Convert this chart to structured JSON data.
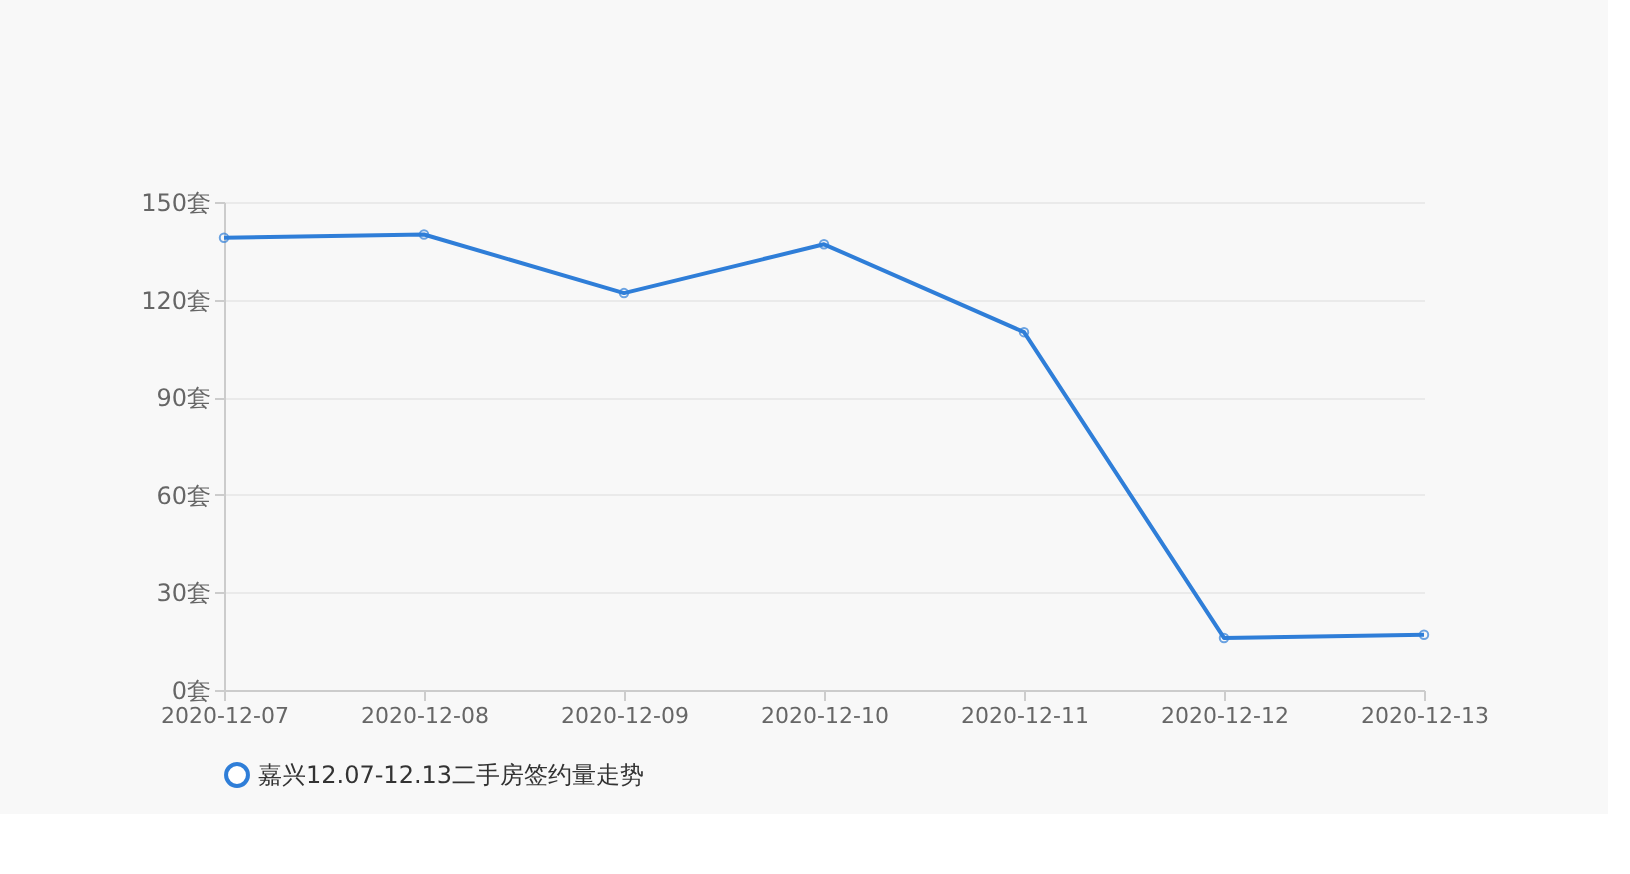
{
  "chart_data": {
    "type": "line",
    "categories": [
      "2020-12-07",
      "2020-12-08",
      "2020-12-09",
      "2020-12-10",
      "2020-12-11",
      "2020-12-12",
      "2020-12-13"
    ],
    "series": [
      {
        "name": "嘉兴12.07-12.13二手房签约量走势",
        "color": "#2f7ed8",
        "values": [
          139,
          140,
          122,
          137,
          110,
          16,
          17
        ]
      }
    ],
    "ylim": [
      0,
      150
    ],
    "yticks": [
      {
        "value": 0,
        "label": "0套"
      },
      {
        "value": 30,
        "label": "30套"
      },
      {
        "value": 60,
        "label": "60套"
      },
      {
        "value": 90,
        "label": "90套"
      },
      {
        "value": 120,
        "label": "120套"
      },
      {
        "value": 150,
        "label": "150套"
      }
    ],
    "grid": "y",
    "legend": "bottom",
    "marker": "circle",
    "line_style": "solid"
  }
}
